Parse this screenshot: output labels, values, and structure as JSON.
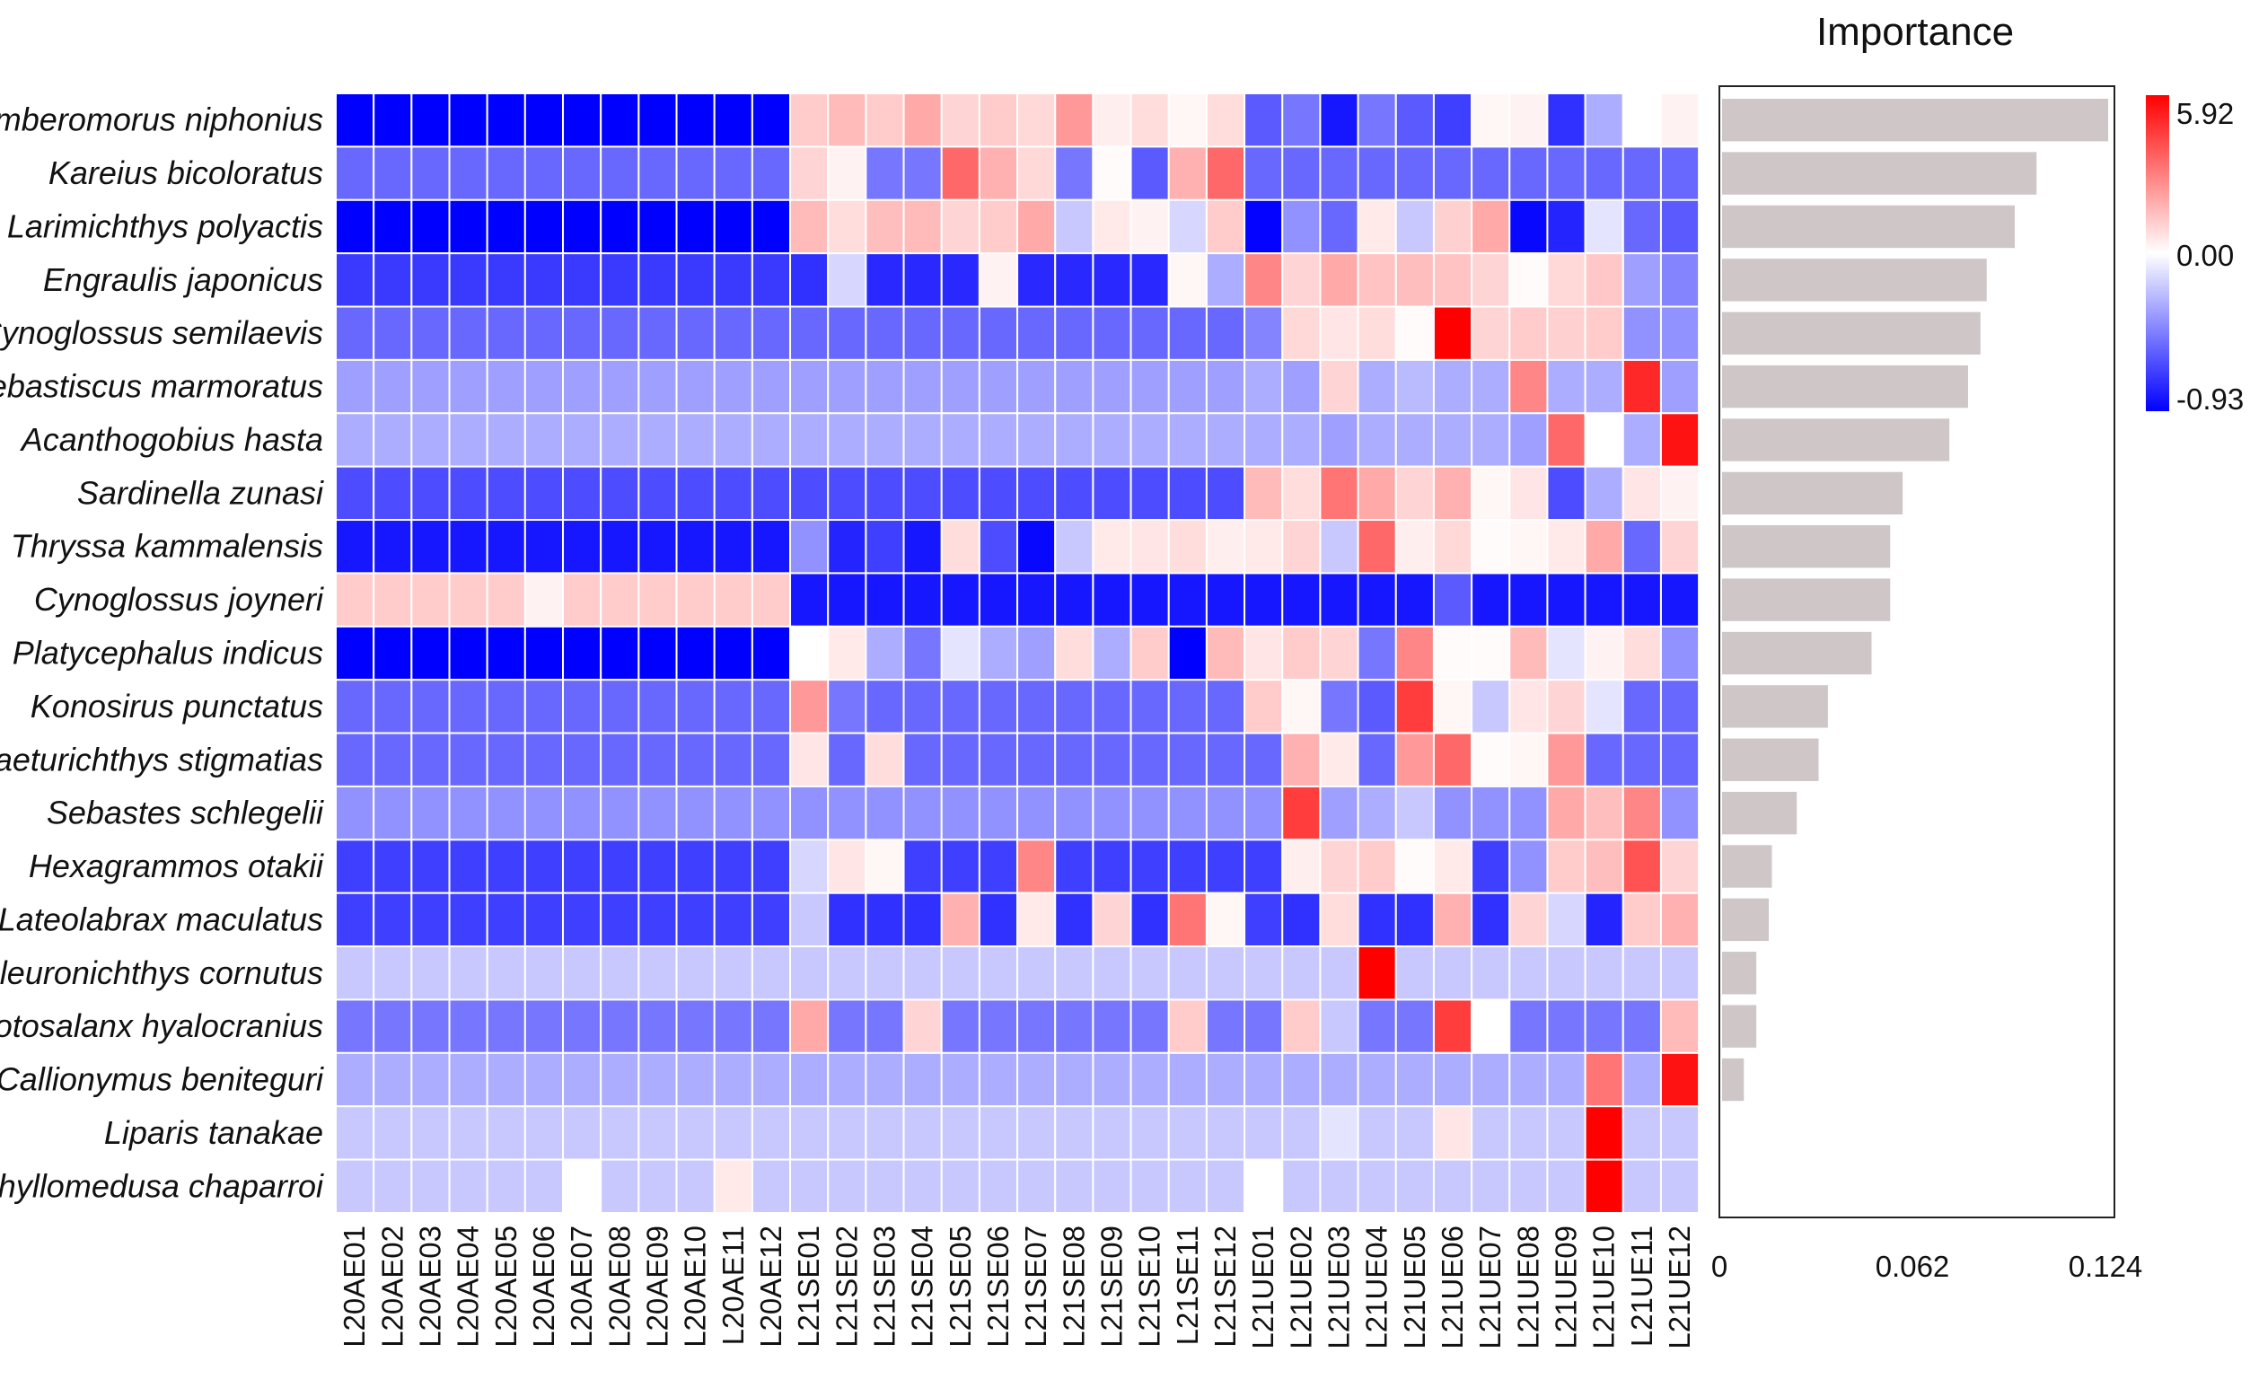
{
  "chart_data": [
    {
      "type": "heatmap",
      "rows": [
        "Scomberomorus niphonius",
        "Kareius bicoloratus",
        "Larimichthys polyactis",
        "Engraulis japonicus",
        "Cynoglossus semilaevis",
        "Sebastiscus marmoratus",
        "Acanthogobius hasta",
        "Sardinella zunasi",
        "Thryssa kammalensis",
        "Cynoglossus joyneri",
        "Platycephalus indicus",
        "Konosirus punctatus",
        "Chaeturichthys stigmatias",
        "Sebastes schlegelii",
        "Hexagrammos otakii",
        "Lateolabrax maculatus",
        "Pleuronichthys cornutus",
        "Protosalanx hyalocranius",
        "Callionymus beniteguri",
        "Liparis tanakae",
        "Phyllomedusa chaparroi"
      ],
      "columns": [
        "L20AE01",
        "L20AE02",
        "L20AE03",
        "L20AE04",
        "L20AE05",
        "L20AE06",
        "L20AE07",
        "L20AE08",
        "L20AE09",
        "L20AE10",
        "L20AE11",
        "L20AE12",
        "L21SE01",
        "L21SE02",
        "L21SE03",
        "L21SE04",
        "L21SE05",
        "L21SE06",
        "L21SE07",
        "L21SE08",
        "L21SE09",
        "L21SE10",
        "L21SE11",
        "L21SE12",
        "L21UE01",
        "L21UE02",
        "L21UE03",
        "L21UE04",
        "L21UE05",
        "L21UE06",
        "L21UE07",
        "L21UE08",
        "L21UE09",
        "L21UE10",
        "L21UE11",
        "L21UE12"
      ],
      "values": [
        [
          -0.93,
          -0.93,
          -0.93,
          -0.93,
          -0.93,
          -0.93,
          -0.93,
          -0.93,
          -0.93,
          -0.93,
          -0.93,
          -0.93,
          1.2,
          1.6,
          1.2,
          2.0,
          1.0,
          1.2,
          0.9,
          2.4,
          0.4,
          0.8,
          0.2,
          0.8,
          -0.6,
          -0.5,
          -0.85,
          -0.5,
          -0.6,
          -0.7,
          0.2,
          0.3,
          -0.75,
          -0.3,
          0.0,
          0.3
        ],
        [
          -0.55,
          -0.55,
          -0.55,
          -0.55,
          -0.55,
          -0.55,
          -0.55,
          -0.55,
          -0.55,
          -0.55,
          -0.55,
          -0.55,
          1.0,
          0.3,
          -0.5,
          -0.5,
          3.5,
          1.8,
          0.9,
          -0.5,
          0.1,
          -0.6,
          1.8,
          3.5,
          -0.55,
          -0.55,
          -0.55,
          -0.55,
          -0.55,
          -0.55,
          -0.55,
          -0.55,
          -0.55,
          -0.55,
          -0.55,
          -0.55
        ],
        [
          -0.93,
          -0.93,
          -0.93,
          -0.93,
          -0.93,
          -0.93,
          -0.93,
          -0.93,
          -0.93,
          -0.93,
          -0.93,
          -0.93,
          1.6,
          0.8,
          1.5,
          1.6,
          1.0,
          1.2,
          2.0,
          -0.2,
          0.5,
          0.3,
          -0.15,
          1.2,
          -0.92,
          -0.4,
          -0.55,
          0.5,
          -0.2,
          1.1,
          2.0,
          -0.9,
          -0.8,
          -0.1,
          -0.55,
          -0.6
        ],
        [
          -0.72,
          -0.72,
          -0.72,
          -0.72,
          -0.72,
          -0.72,
          -0.72,
          -0.72,
          -0.72,
          -0.72,
          -0.72,
          -0.72,
          -0.75,
          -0.15,
          -0.78,
          -0.78,
          -0.78,
          0.3,
          -0.78,
          -0.78,
          -0.78,
          -0.78,
          0.2,
          -0.3,
          2.8,
          1.0,
          2.0,
          1.4,
          1.5,
          1.4,
          1.0,
          0.1,
          0.9,
          1.3,
          -0.35,
          -0.45
        ],
        [
          -0.55,
          -0.55,
          -0.55,
          -0.55,
          -0.55,
          -0.55,
          -0.55,
          -0.55,
          -0.55,
          -0.55,
          -0.55,
          -0.55,
          -0.55,
          -0.55,
          -0.55,
          -0.55,
          -0.55,
          -0.55,
          -0.55,
          -0.55,
          -0.55,
          -0.55,
          -0.55,
          -0.55,
          -0.45,
          0.9,
          0.6,
          0.8,
          0.1,
          5.92,
          1.0,
          1.2,
          1.1,
          1.2,
          -0.4,
          -0.4
        ],
        [
          -0.35,
          -0.35,
          -0.35,
          -0.35,
          -0.35,
          -0.35,
          -0.35,
          -0.35,
          -0.35,
          -0.35,
          -0.35,
          -0.35,
          -0.35,
          -0.35,
          -0.35,
          -0.35,
          -0.35,
          -0.35,
          -0.35,
          -0.35,
          -0.35,
          -0.35,
          -0.35,
          -0.35,
          -0.3,
          -0.35,
          1.0,
          -0.3,
          -0.25,
          -0.3,
          -0.3,
          2.8,
          -0.3,
          -0.3,
          5.0,
          -0.35
        ],
        [
          -0.3,
          -0.3,
          -0.3,
          -0.3,
          -0.3,
          -0.3,
          -0.3,
          -0.3,
          -0.3,
          -0.3,
          -0.3,
          -0.3,
          -0.3,
          -0.3,
          -0.3,
          -0.3,
          -0.3,
          -0.3,
          -0.3,
          -0.3,
          -0.3,
          -0.3,
          -0.3,
          -0.3,
          -0.3,
          -0.3,
          -0.35,
          -0.3,
          -0.3,
          -0.3,
          -0.3,
          -0.35,
          3.5,
          0.0,
          -0.3,
          5.5
        ],
        [
          -0.65,
          -0.65,
          -0.65,
          -0.65,
          -0.65,
          -0.65,
          -0.65,
          -0.65,
          -0.65,
          -0.65,
          -0.65,
          -0.65,
          -0.65,
          -0.65,
          -0.65,
          -0.65,
          -0.65,
          -0.65,
          -0.65,
          -0.65,
          -0.65,
          -0.65,
          -0.65,
          -0.65,
          1.6,
          0.8,
          3.2,
          2.0,
          1.0,
          1.8,
          0.2,
          0.6,
          -0.65,
          -0.3,
          0.6,
          0.3
        ],
        [
          -0.85,
          -0.85,
          -0.85,
          -0.85,
          -0.85,
          -0.85,
          -0.85,
          -0.85,
          -0.85,
          -0.85,
          -0.85,
          -0.85,
          -0.4,
          -0.8,
          -0.7,
          -0.85,
          0.8,
          -0.65,
          -0.9,
          -0.2,
          0.5,
          0.6,
          0.8,
          0.4,
          0.5,
          1.0,
          -0.2,
          3.5,
          0.4,
          0.9,
          0.1,
          0.2,
          0.5,
          2.0,
          -0.55,
          1.0
        ],
        [
          1.2,
          1.2,
          1.2,
          1.2,
          1.2,
          0.3,
          1.2,
          1.2,
          1.2,
          1.2,
          1.2,
          1.2,
          -0.85,
          -0.85,
          -0.85,
          -0.85,
          -0.85,
          -0.85,
          -0.85,
          -0.85,
          -0.85,
          -0.85,
          -0.85,
          -0.85,
          -0.85,
          -0.85,
          -0.85,
          -0.85,
          -0.85,
          -0.6,
          -0.85,
          -0.85,
          -0.85,
          -0.85,
          -0.85,
          -0.85
        ],
        [
          -0.93,
          -0.93,
          -0.93,
          -0.93,
          -0.93,
          -0.93,
          -0.93,
          -0.93,
          -0.93,
          -0.93,
          -0.93,
          -0.93,
          0.0,
          0.5,
          -0.3,
          -0.5,
          -0.1,
          -0.3,
          -0.35,
          0.8,
          -0.3,
          1.2,
          -0.93,
          1.6,
          0.6,
          1.2,
          1.0,
          -0.5,
          2.8,
          0.1,
          0.1,
          1.6,
          -0.1,
          0.3,
          0.8,
          -0.4
        ],
        [
          -0.55,
          -0.55,
          -0.55,
          -0.55,
          -0.55,
          -0.55,
          -0.55,
          -0.55,
          -0.55,
          -0.55,
          -0.55,
          -0.55,
          2.4,
          -0.5,
          -0.55,
          -0.55,
          -0.55,
          -0.55,
          -0.55,
          -0.55,
          -0.55,
          -0.55,
          -0.55,
          -0.55,
          1.2,
          0.2,
          -0.5,
          -0.6,
          4.5,
          0.2,
          -0.2,
          0.6,
          1.0,
          -0.1,
          -0.55,
          -0.55
        ],
        [
          -0.55,
          -0.55,
          -0.55,
          -0.55,
          -0.55,
          -0.55,
          -0.55,
          -0.55,
          -0.55,
          -0.55,
          -0.55,
          -0.55,
          0.6,
          -0.55,
          0.8,
          -0.55,
          -0.55,
          -0.55,
          -0.55,
          -0.55,
          -0.55,
          -0.55,
          -0.55,
          -0.55,
          -0.55,
          1.8,
          0.5,
          -0.55,
          2.4,
          3.5,
          0.1,
          0.2,
          2.4,
          -0.55,
          -0.55,
          -0.55
        ],
        [
          -0.4,
          -0.4,
          -0.4,
          -0.4,
          -0.4,
          -0.4,
          -0.4,
          -0.4,
          -0.4,
          -0.4,
          -0.4,
          -0.4,
          -0.4,
          -0.4,
          -0.4,
          -0.4,
          -0.4,
          -0.4,
          -0.4,
          -0.4,
          -0.4,
          -0.4,
          -0.4,
          -0.4,
          -0.4,
          4.5,
          -0.35,
          -0.3,
          -0.2,
          -0.4,
          -0.4,
          -0.4,
          2.0,
          1.5,
          2.8,
          -0.4
        ],
        [
          -0.7,
          -0.7,
          -0.7,
          -0.7,
          -0.7,
          -0.7,
          -0.7,
          -0.7,
          -0.7,
          -0.7,
          -0.7,
          -0.7,
          -0.15,
          0.6,
          0.2,
          -0.7,
          -0.7,
          -0.7,
          2.8,
          -0.7,
          -0.7,
          -0.7,
          -0.7,
          -0.7,
          -0.7,
          0.4,
          1.0,
          1.2,
          0.1,
          0.5,
          -0.7,
          -0.4,
          1.2,
          1.5,
          4.0,
          1.0
        ],
        [
          -0.7,
          -0.7,
          -0.7,
          -0.7,
          -0.7,
          -0.7,
          -0.7,
          -0.7,
          -0.7,
          -0.7,
          -0.7,
          -0.7,
          -0.2,
          -0.75,
          -0.75,
          -0.75,
          1.8,
          -0.75,
          0.5,
          -0.75,
          1.0,
          -0.75,
          3.2,
          0.2,
          -0.7,
          -0.75,
          0.8,
          -0.75,
          -0.75,
          1.8,
          -0.75,
          1.0,
          -0.15,
          -0.8,
          1.2,
          1.8
        ],
        [
          -0.2,
          -0.2,
          -0.2,
          -0.2,
          -0.2,
          -0.2,
          -0.2,
          -0.2,
          -0.2,
          -0.2,
          -0.2,
          -0.2,
          -0.2,
          -0.2,
          -0.2,
          -0.2,
          -0.2,
          -0.2,
          -0.2,
          -0.2,
          -0.2,
          -0.2,
          -0.2,
          -0.2,
          -0.2,
          -0.2,
          -0.2,
          5.92,
          -0.2,
          -0.2,
          -0.2,
          -0.2,
          -0.2,
          -0.2,
          -0.2,
          -0.2
        ],
        [
          -0.5,
          -0.5,
          -0.5,
          -0.5,
          -0.5,
          -0.5,
          -0.5,
          -0.5,
          -0.5,
          -0.5,
          -0.5,
          -0.5,
          2.0,
          -0.5,
          -0.5,
          1.0,
          -0.5,
          -0.5,
          -0.5,
          -0.5,
          -0.5,
          -0.5,
          1.2,
          -0.5,
          -0.5,
          1.2,
          -0.2,
          -0.5,
          -0.5,
          4.5,
          0.0,
          -0.5,
          -0.5,
          -0.5,
          -0.5,
          1.6
        ],
        [
          -0.3,
          -0.3,
          -0.3,
          -0.3,
          -0.3,
          -0.3,
          -0.3,
          -0.3,
          -0.3,
          -0.3,
          -0.3,
          -0.3,
          -0.3,
          -0.3,
          -0.3,
          -0.3,
          -0.3,
          -0.3,
          -0.3,
          -0.3,
          -0.3,
          -0.3,
          -0.3,
          -0.3,
          -0.3,
          -0.3,
          -0.3,
          -0.3,
          -0.3,
          -0.3,
          -0.3,
          -0.3,
          -0.3,
          3.2,
          -0.3,
          5.5
        ],
        [
          -0.2,
          -0.2,
          -0.2,
          -0.2,
          -0.2,
          -0.2,
          -0.2,
          -0.2,
          -0.2,
          -0.2,
          -0.2,
          -0.2,
          -0.2,
          -0.2,
          -0.2,
          -0.2,
          -0.2,
          -0.2,
          -0.2,
          -0.2,
          -0.2,
          -0.2,
          -0.2,
          -0.2,
          -0.2,
          -0.2,
          -0.1,
          -0.2,
          -0.2,
          0.6,
          -0.2,
          -0.2,
          -0.2,
          5.92,
          -0.2,
          -0.2
        ],
        [
          -0.2,
          -0.2,
          -0.2,
          -0.2,
          -0.2,
          -0.2,
          0.0,
          -0.2,
          -0.2,
          -0.2,
          0.5,
          -0.2,
          -0.2,
          -0.2,
          -0.2,
          -0.2,
          -0.2,
          -0.2,
          -0.2,
          -0.2,
          -0.2,
          -0.2,
          -0.2,
          -0.2,
          0.0,
          -0.2,
          -0.2,
          -0.2,
          -0.2,
          -0.2,
          -0.2,
          -0.2,
          -0.2,
          5.92,
          -0.2,
          -0.2
        ]
      ],
      "color_scale": {
        "min": -0.93,
        "mid": 0.0,
        "max": 5.92,
        "min_color": "#0000ff",
        "mid_color": "#ffffff",
        "max_color": "#ff0000"
      },
      "legend_labels": [
        "5.92",
        "0.00",
        "-0.93"
      ],
      "legend_position": "right"
    },
    {
      "type": "bar",
      "orientation": "horizontal",
      "title": "Importance",
      "categories": [
        "Scomberomorus niphonius",
        "Kareius bicoloratus",
        "Larimichthys polyactis",
        "Engraulis japonicus",
        "Cynoglossus semilaevis",
        "Sebastiscus marmoratus",
        "Acanthogobius hasta",
        "Sardinella zunasi",
        "Thryssa kammalensis",
        "Cynoglossus joyneri",
        "Platycephalus indicus",
        "Konosirus punctatus",
        "Chaeturichthys stigmatias",
        "Sebastes schlegelii",
        "Hexagrammos otakii",
        "Lateolabrax maculatus",
        "Pleuronichthys cornutus",
        "Protosalanx hyalocranius",
        "Callionymus beniteguri",
        "Liparis tanakae",
        "Phyllomedusa chaparroi"
      ],
      "values": [
        0.124,
        0.101,
        0.094,
        0.085,
        0.083,
        0.079,
        0.073,
        0.058,
        0.054,
        0.054,
        0.048,
        0.034,
        0.031,
        0.024,
        0.016,
        0.015,
        0.011,
        0.011,
        0.007,
        0,
        0
      ],
      "xlim": [
        0,
        0.124
      ],
      "ticks": [
        "0",
        "0.062",
        "0.124"
      ],
      "bar_color": "#cfc6c8"
    }
  ]
}
